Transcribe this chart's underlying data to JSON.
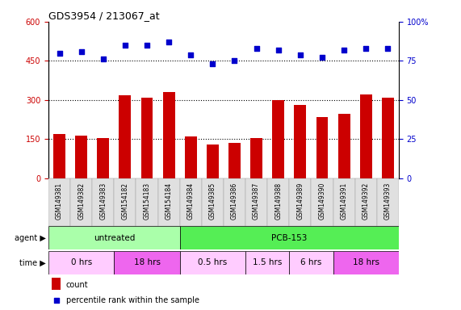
{
  "title": "GDS3954 / 213067_at",
  "samples": [
    "GSM149381",
    "GSM149382",
    "GSM149383",
    "GSM154182",
    "GSM154183",
    "GSM154184",
    "GSM149384",
    "GSM149385",
    "GSM149386",
    "GSM149387",
    "GSM149388",
    "GSM149389",
    "GSM149390",
    "GSM149391",
    "GSM149392",
    "GSM149393"
  ],
  "counts_fixed": [
    170,
    162,
    155,
    318,
    310,
    330,
    160,
    128,
    135,
    155,
    300,
    280,
    235,
    248,
    320,
    308
  ],
  "percentiles": [
    80,
    81,
    76,
    85,
    85,
    87,
    79,
    73,
    75,
    83,
    82,
    79,
    77,
    82,
    83,
    83
  ],
  "ylim_left": [
    0,
    600
  ],
  "ylim_right": [
    0,
    100
  ],
  "yticks_left": [
    0,
    150,
    300,
    450,
    600
  ],
  "yticks_right": [
    0,
    25,
    50,
    75,
    100
  ],
  "ytick_labels_right": [
    "0",
    "25",
    "50",
    "75",
    "100%"
  ],
  "bar_color": "#cc0000",
  "dot_color": "#0000cc",
  "grid_color": "#000000",
  "agent_groups": [
    {
      "label": "untreated",
      "start": 0,
      "end": 6,
      "color": "#aaffaa"
    },
    {
      "label": "PCB-153",
      "start": 6,
      "end": 16,
      "color": "#55ee55"
    }
  ],
  "time_groups": [
    {
      "label": "0 hrs",
      "start": 0,
      "end": 3,
      "color": "#ffccff"
    },
    {
      "label": "18 hrs",
      "start": 3,
      "end": 6,
      "color": "#ee66ee"
    },
    {
      "label": "0.5 hrs",
      "start": 6,
      "end": 9,
      "color": "#ffccff"
    },
    {
      "label": "1.5 hrs",
      "start": 9,
      "end": 11,
      "color": "#ffccff"
    },
    {
      "label": "6 hrs",
      "start": 11,
      "end": 13,
      "color": "#ffccff"
    },
    {
      "label": "18 hrs",
      "start": 13,
      "end": 16,
      "color": "#ee66ee"
    }
  ],
  "legend_count_color": "#cc0000",
  "legend_pct_color": "#0000cc",
  "bg_color": "#ffffff",
  "tick_label_color_left": "#cc0000",
  "tick_label_color_right": "#0000cc",
  "font_size": 7,
  "title_font_size": 9,
  "bar_width": 0.55
}
